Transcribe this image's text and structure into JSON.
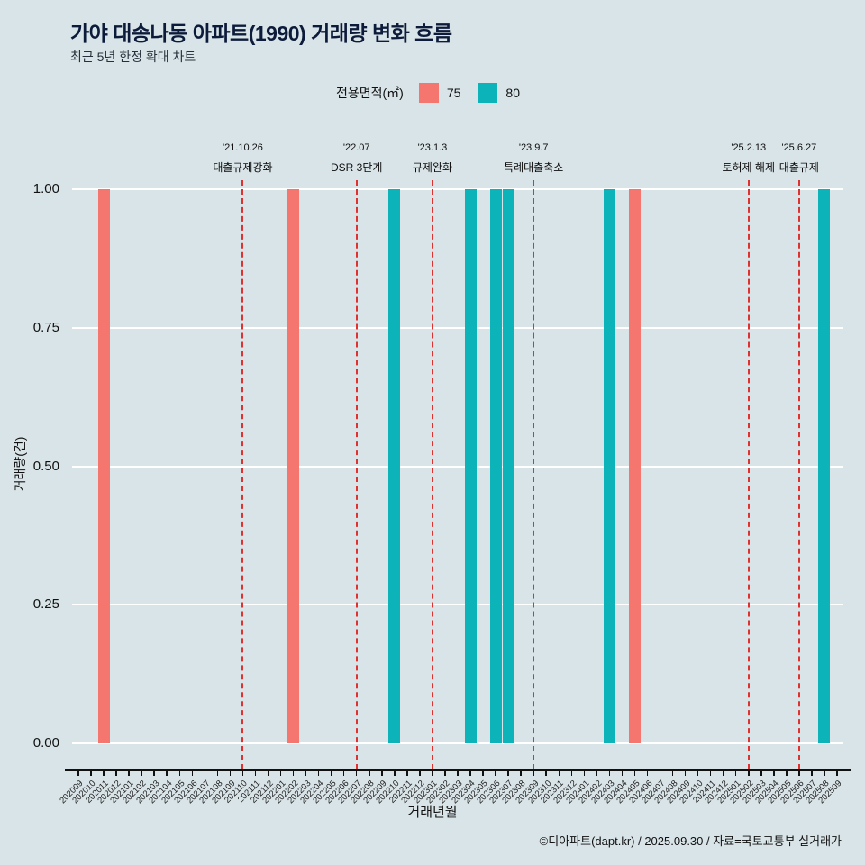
{
  "title": "가야 대송나동 아파트(1990) 거래량 변화 흐름",
  "subtitle": "최근 5년 한정 확대 차트",
  "legend": {
    "label": "전용면적(㎡)",
    "items": [
      {
        "name": "75",
        "color": "#f4766e"
      },
      {
        "name": "80",
        "color": "#0cb4ba"
      }
    ]
  },
  "footer": "©디아파트(dapt.kr) / 2025.09.30 / 자료=국토교통부 실거래가",
  "chart_data": {
    "type": "bar",
    "title": "가야 대송나동 아파트(1990) 거래량 변화 흐름",
    "xlabel": "거래년월",
    "ylabel": "거래량(건)",
    "ylim": [
      0,
      1.0
    ],
    "yticks": [
      0,
      0.25,
      0.5,
      0.75,
      1.0
    ],
    "grid": true,
    "legend_position": "top",
    "categories": [
      "202009",
      "202010",
      "202011",
      "202012",
      "202101",
      "202102",
      "202103",
      "202104",
      "202105",
      "202106",
      "202107",
      "202108",
      "202109",
      "202110",
      "202111",
      "202112",
      "202201",
      "202202",
      "202203",
      "202204",
      "202205",
      "202206",
      "202207",
      "202208",
      "202209",
      "202210",
      "202211",
      "202212",
      "202301",
      "202302",
      "202303",
      "202304",
      "202305",
      "202306",
      "202307",
      "202308",
      "202309",
      "202310",
      "202311",
      "202312",
      "202401",
      "202402",
      "202403",
      "202404",
      "202405",
      "202406",
      "202407",
      "202408",
      "202409",
      "202410",
      "202411",
      "202412",
      "202501",
      "202502",
      "202503",
      "202504",
      "202505",
      "202506",
      "202507",
      "202508",
      "202509"
    ],
    "series": [
      {
        "name": "75",
        "color": "#f4766e",
        "points": [
          {
            "x": "202011",
            "y": 1
          },
          {
            "x": "202202",
            "y": 1
          },
          {
            "x": "202405",
            "y": 1
          }
        ]
      },
      {
        "name": "80",
        "color": "#0cb4ba",
        "points": [
          {
            "x": "202210",
            "y": 1
          },
          {
            "x": "202304",
            "y": 1
          },
          {
            "x": "202306",
            "y": 1
          },
          {
            "x": "202307",
            "y": 1
          },
          {
            "x": "202403",
            "y": 1
          },
          {
            "x": "202508",
            "y": 1
          }
        ]
      }
    ],
    "events": [
      {
        "date": "'21.10.26",
        "label": "대출규제강화",
        "x": "202110"
      },
      {
        "date": "'22.07",
        "label": "DSR 3단계",
        "x": "202207"
      },
      {
        "date": "'23.1.3",
        "label": "규제완화",
        "x": "202301"
      },
      {
        "date": "'23.9.7",
        "label": "특례대출축소",
        "x": "202309"
      },
      {
        "date": "'25.2.13",
        "label": "토허제 해제",
        "x": "202502"
      },
      {
        "date": "'25.6.27",
        "label": "대출규제",
        "x": "202506"
      }
    ],
    "event_line_color": "#e03131"
  }
}
